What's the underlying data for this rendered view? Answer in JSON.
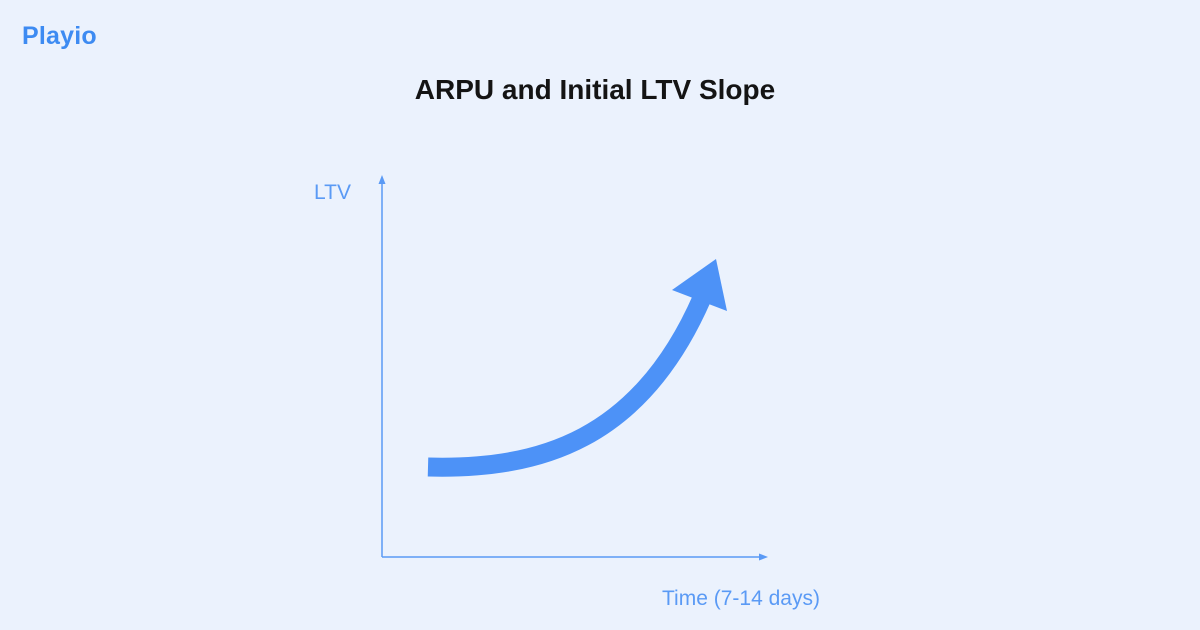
{
  "brand": {
    "name": "Playio"
  },
  "header": {
    "title": "ARPU and Initial LTV Slope"
  },
  "diagram": {
    "y_axis_label": "LTV",
    "x_axis_label": "Time (7-14 days)",
    "colors": {
      "background": "#ebf2fd",
      "brand": "#3d8bf2",
      "axis": "#5a9af5",
      "curve": "#4d92f7",
      "title": "#141414"
    }
  }
}
